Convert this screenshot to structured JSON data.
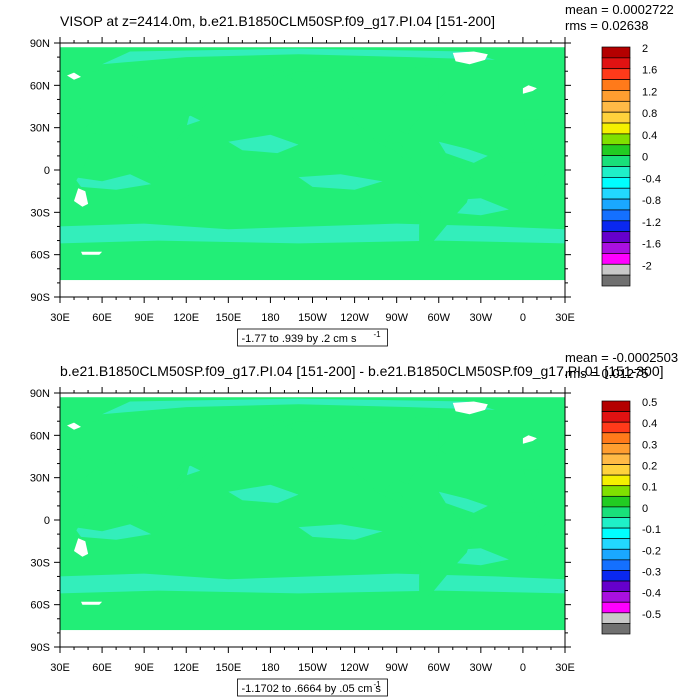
{
  "chart_data": [
    {
      "type": "heatmap",
      "title": "VISOP at z=2414.0m, b.e21.B1850CLM50SP.f09_g17.PI.04 [151-200]",
      "stats": [
        "mean = 0.0002722",
        "rms = 0.02638"
      ],
      "xlabel": "",
      "ylabel": "",
      "xticks": [
        "30E",
        "60E",
        "90E",
        "120E",
        "150E",
        "180",
        "150W",
        "120W",
        "90W",
        "60W",
        "30W",
        "0",
        "30E"
      ],
      "yticks": [
        "90N",
        "60N",
        "30N",
        "0",
        "30S",
        "60S",
        "90S"
      ],
      "xlim": [
        30,
        390
      ],
      "ylim": [
        -90,
        90
      ],
      "colorbar": {
        "labels": [
          "2",
          "1.6",
          "1.2",
          "0.8",
          "0.4",
          "0",
          "-0.4",
          "-0.8",
          "-1.2",
          "-1.6",
          "-2"
        ],
        "colors": [
          "#b40000",
          "#e11212",
          "#ff3a1a",
          "#ff7a1a",
          "#ff9e30",
          "#ffba46",
          "#ffd23c",
          "#f5f000",
          "#80e000",
          "#22cc22",
          "#19e07a",
          "#1ff0c8",
          "#00ffff",
          "#22d8ff",
          "#1aa8ff",
          "#1470ff",
          "#0a28f0",
          "#6600cc",
          "#aa10e0",
          "#ff00ff",
          "#c8c8c8",
          "#707070"
        ]
      },
      "info_box": "-1.77 to .939 by .2 cm s",
      "info_exp": "-1",
      "background_value": "0 to 0.2",
      "background_color": "#22ee77",
      "pattern_color": "#33eebb"
    },
    {
      "type": "heatmap",
      "title": "b.e21.B1850CLM50SP.f09_g17.PI.04 [151-200] - b.e21.B1850CLM50SP.f09_g17.PI.01 [151-300]",
      "stats": [
        "mean = -0.0002503",
        "rms = 0.01275"
      ],
      "xlabel": "",
      "ylabel": "",
      "xticks": [
        "30E",
        "60E",
        "90E",
        "120E",
        "150E",
        "180",
        "150W",
        "120W",
        "90W",
        "60W",
        "30W",
        "0",
        "30E"
      ],
      "yticks": [
        "90N",
        "60N",
        "30N",
        "0",
        "30S",
        "60S",
        "90S"
      ],
      "xlim": [
        30,
        390
      ],
      "ylim": [
        -90,
        90
      ],
      "colorbar": {
        "labels": [
          "0.5",
          "0.4",
          "0.3",
          "0.2",
          "0.1",
          "0",
          "-0.1",
          "-0.2",
          "-0.3",
          "-0.4",
          "-0.5"
        ],
        "colors": [
          "#b40000",
          "#e11212",
          "#ff3a1a",
          "#ff7a1a",
          "#ff9e30",
          "#ffba46",
          "#ffd23c",
          "#f5f000",
          "#80e000",
          "#22cc22",
          "#19e07a",
          "#1ff0c8",
          "#00ffff",
          "#22d8ff",
          "#1aa8ff",
          "#1470ff",
          "#0a28f0",
          "#6600cc",
          "#aa10e0",
          "#ff00ff",
          "#c8c8c8",
          "#707070"
        ]
      },
      "info_box": "-1.1702 to .6664 by .05 cm s",
      "info_exp": "-1",
      "background_value": "0 to 0.05",
      "background_color": "#22ee77",
      "pattern_color": "#33eebb"
    }
  ]
}
